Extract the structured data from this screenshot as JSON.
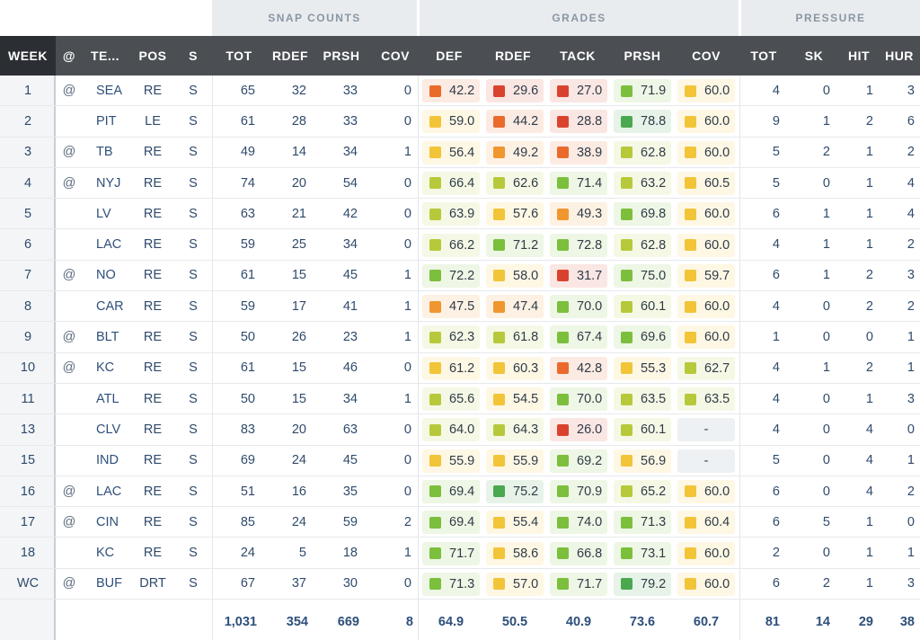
{
  "groups": {
    "snap": "SNAP COUNTS",
    "grades": "GRADES",
    "pressure": "PRESSURE"
  },
  "headers": [
    "WEEK",
    "@",
    "TE...",
    "POS",
    "S",
    "TOT",
    "RDEF",
    "PRSH",
    "COV",
    "DEF",
    "RDEF",
    "TACK",
    "PRSH",
    "COV",
    "TOT",
    "SK",
    "HIT",
    "HUR"
  ],
  "grade_colors": {
    "dark_green": "#4aa84f",
    "green": "#7cbf3c",
    "yellow_green": "#b7c93a",
    "yellow": "#f2c438",
    "orange": "#f0962f",
    "red_orange": "#ea6a2c",
    "red": "#d9432e"
  },
  "rows": [
    {
      "week": "1",
      "at": "@",
      "team": "SEA",
      "pos": "RE",
      "s": "S",
      "tot": "65",
      "rdef": "32",
      "prsh": "33",
      "cov": "0",
      "g": [
        [
          "42.2",
          "red_orange"
        ],
        [
          "29.6",
          "red"
        ],
        [
          "27.0",
          "red"
        ],
        [
          "71.9",
          "green"
        ],
        [
          "60.0",
          "yellow"
        ]
      ],
      "p": [
        "4",
        "0",
        "1",
        "3"
      ]
    },
    {
      "week": "2",
      "at": "",
      "team": "PIT",
      "pos": "LE",
      "s": "S",
      "tot": "61",
      "rdef": "28",
      "prsh": "33",
      "cov": "0",
      "g": [
        [
          "59.0",
          "yellow"
        ],
        [
          "44.2",
          "red_orange"
        ],
        [
          "28.8",
          "red"
        ],
        [
          "78.8",
          "dark_green"
        ],
        [
          "60.0",
          "yellow"
        ]
      ],
      "p": [
        "9",
        "1",
        "2",
        "6"
      ]
    },
    {
      "week": "3",
      "at": "@",
      "team": "TB",
      "pos": "RE",
      "s": "S",
      "tot": "49",
      "rdef": "14",
      "prsh": "34",
      "cov": "1",
      "g": [
        [
          "56.4",
          "yellow"
        ],
        [
          "49.2",
          "orange"
        ],
        [
          "38.9",
          "red_orange"
        ],
        [
          "62.8",
          "yellow_green"
        ],
        [
          "60.0",
          "yellow"
        ]
      ],
      "p": [
        "5",
        "2",
        "1",
        "2"
      ]
    },
    {
      "week": "4",
      "at": "@",
      "team": "NYJ",
      "pos": "RE",
      "s": "S",
      "tot": "74",
      "rdef": "20",
      "prsh": "54",
      "cov": "0",
      "g": [
        [
          "66.4",
          "yellow_green"
        ],
        [
          "62.6",
          "yellow_green"
        ],
        [
          "71.4",
          "green"
        ],
        [
          "63.2",
          "yellow_green"
        ],
        [
          "60.5",
          "yellow"
        ]
      ],
      "p": [
        "5",
        "0",
        "1",
        "4"
      ]
    },
    {
      "week": "5",
      "at": "",
      "team": "LV",
      "pos": "RE",
      "s": "S",
      "tot": "63",
      "rdef": "21",
      "prsh": "42",
      "cov": "0",
      "g": [
        [
          "63.9",
          "yellow_green"
        ],
        [
          "57.6",
          "yellow"
        ],
        [
          "49.3",
          "orange"
        ],
        [
          "69.8",
          "green"
        ],
        [
          "60.0",
          "yellow"
        ]
      ],
      "p": [
        "6",
        "1",
        "1",
        "4"
      ]
    },
    {
      "week": "6",
      "at": "",
      "team": "LAC",
      "pos": "RE",
      "s": "S",
      "tot": "59",
      "rdef": "25",
      "prsh": "34",
      "cov": "0",
      "g": [
        [
          "66.2",
          "yellow_green"
        ],
        [
          "71.2",
          "green"
        ],
        [
          "72.8",
          "green"
        ],
        [
          "62.8",
          "yellow_green"
        ],
        [
          "60.0",
          "yellow"
        ]
      ],
      "p": [
        "4",
        "1",
        "1",
        "2"
      ]
    },
    {
      "week": "7",
      "at": "@",
      "team": "NO",
      "pos": "RE",
      "s": "S",
      "tot": "61",
      "rdef": "15",
      "prsh": "45",
      "cov": "1",
      "g": [
        [
          "72.2",
          "green"
        ],
        [
          "58.0",
          "yellow"
        ],
        [
          "31.7",
          "red"
        ],
        [
          "75.0",
          "green"
        ],
        [
          "59.7",
          "yellow"
        ]
      ],
      "p": [
        "6",
        "1",
        "2",
        "3"
      ]
    },
    {
      "week": "8",
      "at": "",
      "team": "CAR",
      "pos": "RE",
      "s": "S",
      "tot": "59",
      "rdef": "17",
      "prsh": "41",
      "cov": "1",
      "g": [
        [
          "47.5",
          "orange"
        ],
        [
          "47.4",
          "orange"
        ],
        [
          "70.0",
          "green"
        ],
        [
          "60.1",
          "yellow_green"
        ],
        [
          "60.0",
          "yellow"
        ]
      ],
      "p": [
        "4",
        "0",
        "2",
        "2"
      ]
    },
    {
      "week": "9",
      "at": "@",
      "team": "BLT",
      "pos": "RE",
      "s": "S",
      "tot": "50",
      "rdef": "26",
      "prsh": "23",
      "cov": "1",
      "g": [
        [
          "62.3",
          "yellow_green"
        ],
        [
          "61.8",
          "yellow_green"
        ],
        [
          "67.4",
          "green"
        ],
        [
          "69.6",
          "green"
        ],
        [
          "60.0",
          "yellow"
        ]
      ],
      "p": [
        "1",
        "0",
        "0",
        "1"
      ]
    },
    {
      "week": "10",
      "at": "@",
      "team": "KC",
      "pos": "RE",
      "s": "S",
      "tot": "61",
      "rdef": "15",
      "prsh": "46",
      "cov": "0",
      "g": [
        [
          "61.2",
          "yellow"
        ],
        [
          "60.3",
          "yellow"
        ],
        [
          "42.8",
          "red_orange"
        ],
        [
          "55.3",
          "yellow"
        ],
        [
          "62.7",
          "yellow_green"
        ]
      ],
      "p": [
        "4",
        "1",
        "2",
        "1"
      ]
    },
    {
      "week": "11",
      "at": "",
      "team": "ATL",
      "pos": "RE",
      "s": "S",
      "tot": "50",
      "rdef": "15",
      "prsh": "34",
      "cov": "1",
      "g": [
        [
          "65.6",
          "yellow_green"
        ],
        [
          "54.5",
          "yellow"
        ],
        [
          "70.0",
          "green"
        ],
        [
          "63.5",
          "yellow_green"
        ],
        [
          "63.5",
          "yellow_green"
        ]
      ],
      "p": [
        "4",
        "0",
        "1",
        "3"
      ]
    },
    {
      "week": "13",
      "at": "",
      "team": "CLV",
      "pos": "RE",
      "s": "S",
      "tot": "83",
      "rdef": "20",
      "prsh": "63",
      "cov": "0",
      "g": [
        [
          "64.0",
          "yellow_green"
        ],
        [
          "64.3",
          "yellow_green"
        ],
        [
          "26.0",
          "red"
        ],
        [
          "60.1",
          "yellow_green"
        ],
        [
          "-",
          "none"
        ]
      ],
      "p": [
        "4",
        "0",
        "4",
        "0"
      ]
    },
    {
      "week": "15",
      "at": "",
      "team": "IND",
      "pos": "RE",
      "s": "S",
      "tot": "69",
      "rdef": "24",
      "prsh": "45",
      "cov": "0",
      "g": [
        [
          "55.9",
          "yellow"
        ],
        [
          "55.9",
          "yellow"
        ],
        [
          "69.2",
          "green"
        ],
        [
          "56.9",
          "yellow"
        ],
        [
          "-",
          "none"
        ]
      ],
      "p": [
        "5",
        "0",
        "4",
        "1"
      ]
    },
    {
      "week": "16",
      "at": "@",
      "team": "LAC",
      "pos": "RE",
      "s": "S",
      "tot": "51",
      "rdef": "16",
      "prsh": "35",
      "cov": "0",
      "g": [
        [
          "69.4",
          "green"
        ],
        [
          "75.2",
          "dark_green"
        ],
        [
          "70.9",
          "green"
        ],
        [
          "65.2",
          "yellow_green"
        ],
        [
          "60.0",
          "yellow"
        ]
      ],
      "p": [
        "6",
        "0",
        "4",
        "2"
      ]
    },
    {
      "week": "17",
      "at": "@",
      "team": "CIN",
      "pos": "RE",
      "s": "S",
      "tot": "85",
      "rdef": "24",
      "prsh": "59",
      "cov": "2",
      "g": [
        [
          "69.4",
          "green"
        ],
        [
          "55.4",
          "yellow"
        ],
        [
          "74.0",
          "green"
        ],
        [
          "71.3",
          "green"
        ],
        [
          "60.4",
          "yellow"
        ]
      ],
      "p": [
        "6",
        "5",
        "1",
        "0"
      ]
    },
    {
      "week": "18",
      "at": "",
      "team": "KC",
      "pos": "RE",
      "s": "S",
      "tot": "24",
      "rdef": "5",
      "prsh": "18",
      "cov": "1",
      "g": [
        [
          "71.7",
          "green"
        ],
        [
          "58.6",
          "yellow"
        ],
        [
          "66.8",
          "green"
        ],
        [
          "73.1",
          "green"
        ],
        [
          "60.0",
          "yellow"
        ]
      ],
      "p": [
        "2",
        "0",
        "1",
        "1"
      ]
    },
    {
      "week": "WC",
      "at": "@",
      "team": "BUF",
      "pos": "DRT",
      "s": "S",
      "tot": "67",
      "rdef": "37",
      "prsh": "30",
      "cov": "0",
      "g": [
        [
          "71.3",
          "green"
        ],
        [
          "57.0",
          "yellow"
        ],
        [
          "71.7",
          "green"
        ],
        [
          "79.2",
          "dark_green"
        ],
        [
          "60.0",
          "yellow"
        ]
      ],
      "p": [
        "6",
        "2",
        "1",
        "3"
      ]
    }
  ],
  "totals": {
    "tot": "1,031",
    "rdef": "354",
    "prsh": "669",
    "cov": "8",
    "def": "64.9",
    "grdef": "50.5",
    "tack": "40.9",
    "gprsh": "73.6",
    "gcov": "60.7",
    "ptot": "81",
    "sk": "14",
    "hit": "29",
    "hur": "38"
  }
}
